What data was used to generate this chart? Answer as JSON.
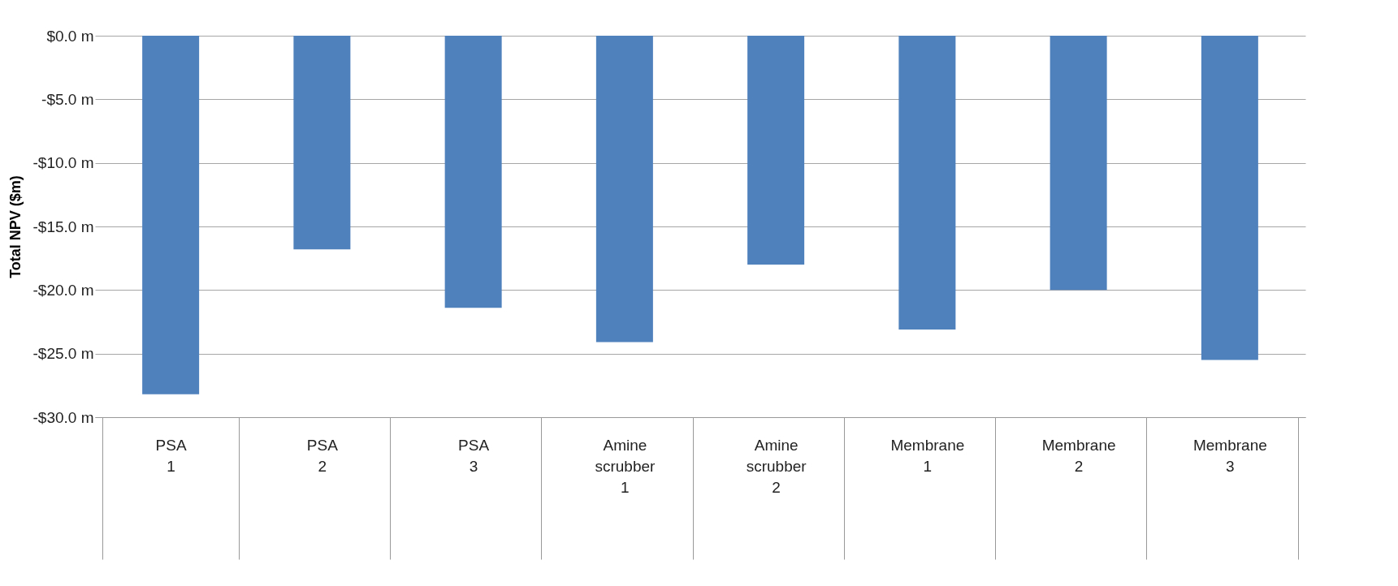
{
  "chart_data": {
    "type": "bar",
    "ylabel": "Total NPV ($m)",
    "categories": [
      "PSA\n1",
      "PSA\n2",
      "PSA\n3",
      "Amine scrubber\n1",
      "Amine scrubber\n2",
      "Membrane\n1",
      "Membrane\n2",
      "Membrane\n3"
    ],
    "values": [
      -28.2,
      -16.8,
      -21.4,
      -24.1,
      -18.0,
      -23.1,
      -20.0,
      -25.5
    ],
    "color": "#4f81bd",
    "ylim": [
      -30,
      0
    ],
    "yticks": [
      {
        "value": 0,
        "label": "$0.0 m"
      },
      {
        "value": -5,
        "label": "-$5.0 m"
      },
      {
        "value": -10,
        "label": "-$10.0 m"
      },
      {
        "value": -15,
        "label": "-$15.0 m"
      },
      {
        "value": -20,
        "label": "-$20.0 m"
      },
      {
        "value": -25,
        "label": "-$25.0 m"
      },
      {
        "value": -30,
        "label": "-$30.0 m"
      }
    ],
    "grid": "y"
  }
}
